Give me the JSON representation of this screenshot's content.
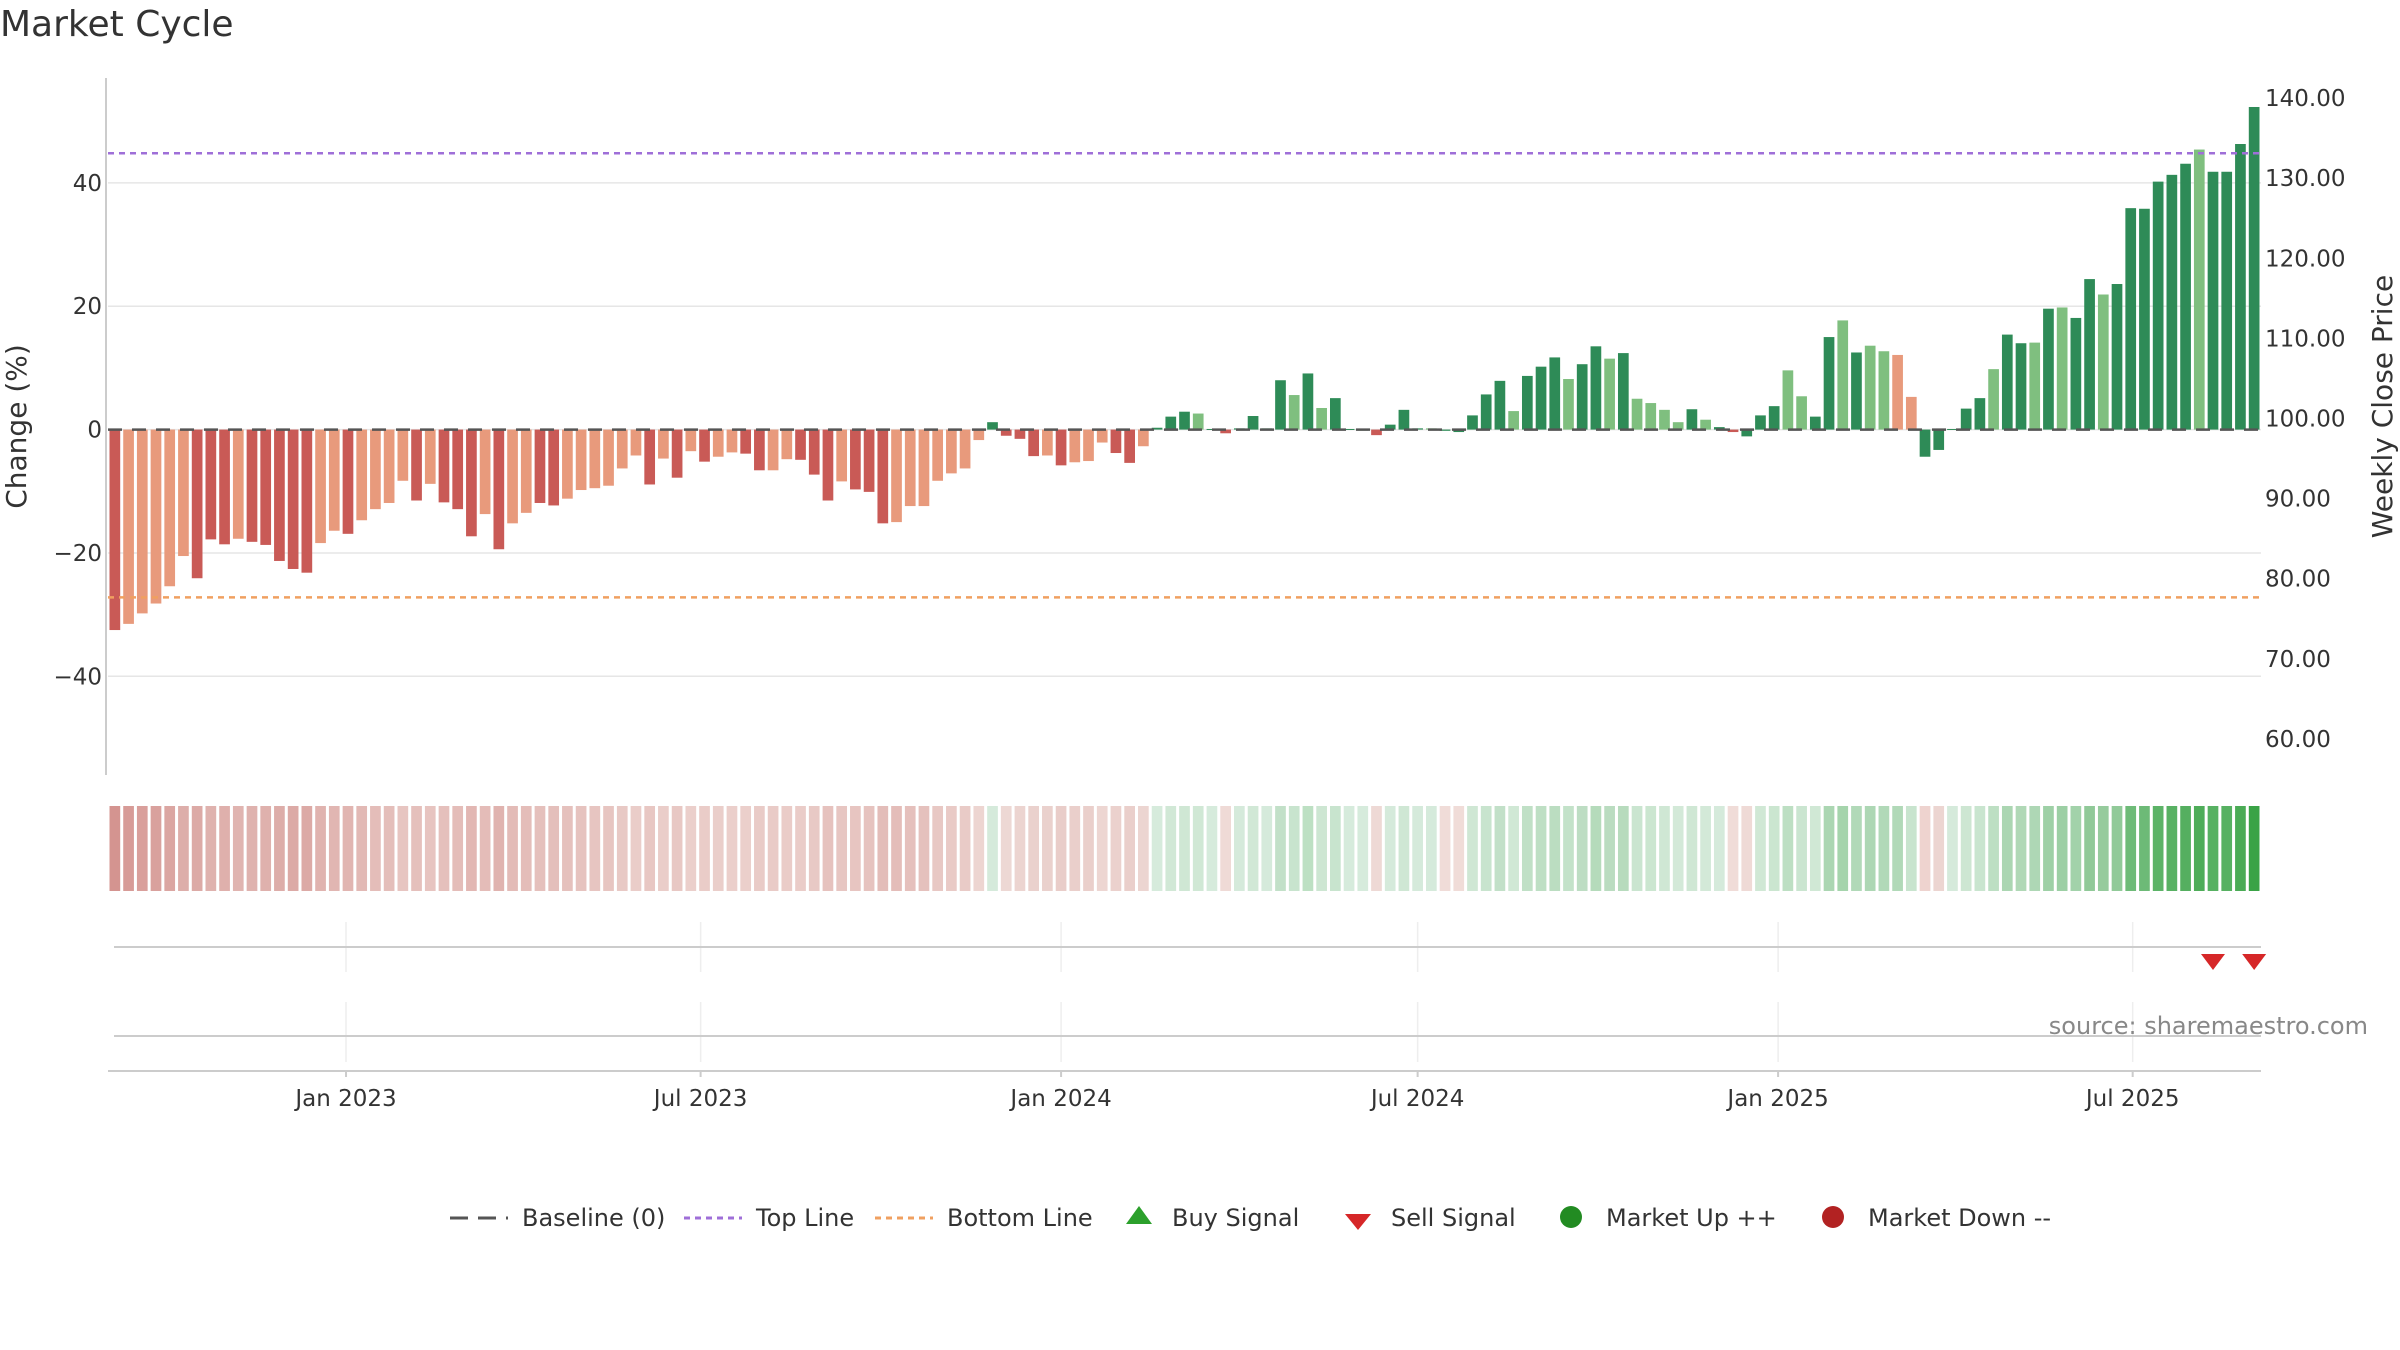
{
  "title": "Market Cycle",
  "source": "source: sharemaestro.com",
  "chart_data": {
    "type": "bar",
    "title": "Market Cycle",
    "ylabel": "Change (%)",
    "y2label": "Weekly Close Price",
    "ylim": [
      -56,
      57
    ],
    "y2lim": [
      55.5,
      142.5
    ],
    "yticks": [
      -40,
      -20,
      0,
      20,
      40
    ],
    "yticklabels": [
      "−40",
      "−20",
      "0",
      "20",
      "40"
    ],
    "y2ticks": [
      60,
      70,
      80,
      90,
      100,
      110,
      120,
      130,
      140
    ],
    "y2ticklabels": [
      "60.00",
      "70.00",
      "80.00",
      "90.00",
      "100.00",
      "110.00",
      "120.00",
      "130.00",
      "140.00"
    ],
    "xticklabels": [
      "Jan 2023",
      "Jul 2023",
      "Jan 2024",
      "Jul 2024",
      "Jan 2025",
      "Jul 2025"
    ],
    "x_start": "2022-09-05",
    "x_tick_dates": [
      "2023-01-01",
      "2023-07-01",
      "2024-01-01",
      "2024-07-01",
      "2025-01-01",
      "2025-07-01"
    ],
    "top_line": 44.8,
    "bottom_line": -27.2,
    "baseline": 0,
    "grid": true,
    "legend_position": "bottom",
    "colors": {
      "strong_down": "#c95a56",
      "weak_down": "#e89a7c",
      "strong_up": "#2e8b57",
      "weak_up": "#7fbf7f",
      "top_line": "#9f6fd8",
      "bottom_line": "#f0a060",
      "baseline": "#555555",
      "buy": "#2ca02c",
      "sell": "#d62728",
      "market_up": "#228b22",
      "market_down": "#b22222"
    },
    "series": [
      {
        "values": [
          -32.5,
          -31.5,
          -29.8,
          -28.2,
          -25.4,
          -20.5,
          -24.1,
          -17.8,
          -18.6,
          -17.7,
          -18.2,
          -18.7,
          -21.3,
          -22.6,
          -23.2,
          -18.4,
          -16.4,
          -16.9,
          -14.7,
          -12.9,
          -11.9,
          -8.3,
          -11.5,
          -8.8,
          -11.8,
          -12.9,
          -17.3,
          -13.7,
          -19.4,
          -15.2,
          -13.5,
          -11.9,
          -12.3,
          -11.2,
          -9.8,
          -9.5,
          -9.1,
          -6.3,
          -4.2,
          -8.9,
          -4.7,
          -7.8,
          -3.5,
          -5.2,
          -4.4,
          -3.7,
          -3.9,
          -6.6,
          -6.6,
          -4.8,
          -4.9,
          -7.3,
          -11.5,
          -8.4,
          -9.7,
          -10.1,
          -15.2,
          -15.0,
          -12.4,
          -12.4,
          -8.3,
          -7.1,
          -6.3,
          -1.7,
          1.2,
          -1.0,
          -1.5,
          -4.3,
          -4.2,
          -5.8,
          -5.3,
          -5.1,
          -2.1,
          -3.8,
          -5.4,
          -2.7,
          0.3,
          2.1,
          2.9,
          2.6,
          0.1,
          -0.6,
          0.2,
          2.2,
          0.2,
          8.0,
          5.6,
          9.1,
          3.5,
          5.1,
          0.1,
          0.0,
          -0.9,
          0.8,
          3.2,
          0.2,
          0.2,
          -0.2,
          -0.4,
          2.3,
          5.7,
          7.9,
          3.0,
          8.7,
          10.2,
          11.7,
          8.2,
          10.6,
          13.5,
          11.5,
          12.4,
          5.0,
          4.3,
          3.2,
          1.2,
          3.3,
          1.6,
          0.4,
          -0.4,
          -1.1,
          2.3,
          3.8,
          9.6,
          5.4,
          2.1,
          15.0,
          17.7,
          12.5,
          13.6,
          12.7,
          12.1,
          5.3,
          -4.4,
          -3.3,
          0.1,
          3.4,
          5.1,
          9.8,
          15.4,
          14.0,
          14.1,
          19.6,
          19.8,
          18.1,
          24.4,
          21.9,
          23.6,
          35.9,
          35.8,
          40.2,
          41.3,
          43.1,
          45.4,
          41.8,
          41.8,
          46.3,
          52.3
        ]
      }
    ],
    "strengths": [
      "sd",
      "wd",
      "wd",
      "wd",
      "wd",
      "wd",
      "sd",
      "sd",
      "sd",
      "wd",
      "sd",
      "sd",
      "sd",
      "sd",
      "sd",
      "wd",
      "wd",
      "sd",
      "wd",
      "wd",
      "wd",
      "wd",
      "sd",
      "wd",
      "sd",
      "sd",
      "sd",
      "wd",
      "sd",
      "wd",
      "wd",
      "sd",
      "sd",
      "wd",
      "wd",
      "wd",
      "wd",
      "wd",
      "wd",
      "sd",
      "wd",
      "sd",
      "wd",
      "sd",
      "wd",
      "wd",
      "sd",
      "sd",
      "wd",
      "wd",
      "sd",
      "sd",
      "sd",
      "wd",
      "sd",
      "sd",
      "sd",
      "wd",
      "wd",
      "wd",
      "wd",
      "wd",
      "wd",
      "wd",
      "su",
      "sd",
      "sd",
      "sd",
      "wd",
      "sd",
      "wd",
      "wd",
      "wd",
      "sd",
      "sd",
      "wd",
      "su",
      "su",
      "su",
      "wu",
      "su",
      "sd",
      "su",
      "su",
      "su",
      "su",
      "wu",
      "su",
      "wu",
      "su",
      "su",
      "su",
      "sd",
      "su",
      "su",
      "su",
      "wu",
      "su",
      "su",
      "su",
      "su",
      "su",
      "wu",
      "su",
      "su",
      "su",
      "wu",
      "su",
      "su",
      "wu",
      "su",
      "wu",
      "wu",
      "wu",
      "wu",
      "su",
      "wu",
      "su",
      "sd",
      "su",
      "su",
      "su",
      "wu",
      "wu",
      "su",
      "su",
      "wu",
      "su",
      "wu",
      "wu",
      "wd",
      "wd",
      "su",
      "su",
      "su",
      "su",
      "su",
      "wu",
      "su",
      "su",
      "wu",
      "su",
      "wu",
      "su",
      "su",
      "wu",
      "su",
      "su",
      "su",
      "su",
      "su",
      "su",
      "wu",
      "su",
      "su",
      "su",
      "su"
    ],
    "heatmap_colors": [
      "#d49490",
      "#d79b97",
      "#d99f9b",
      "#d9a19d",
      "#dba6a2",
      "#ddaeaa",
      "#dcaaa6",
      "#dfb2ae",
      "#dfb0ac",
      "#e0b4b0",
      "#dfb2ae",
      "#dfb1ad",
      "#ddada9",
      "#dcaaa6",
      "#dcaaa6",
      "#e0b3af",
      "#e1b6b2",
      "#e1b5b1",
      "#e2b9b5",
      "#e4bdb9",
      "#e4beba",
      "#e7c5c1",
      "#e5c0bc",
      "#e7c4c0",
      "#e5c0bc",
      "#e4bdb9",
      "#e2b7b3",
      "#e4bcb8",
      "#e0b3af",
      "#e3bbb7",
      "#e4bdb9",
      "#e5c0bc",
      "#e4bfbb",
      "#e5c1bd",
      "#e6c3bf",
      "#e7c5c1",
      "#e7c5c1",
      "#e8c9c5",
      "#eacdc9",
      "#e8c7c3",
      "#eacdc9",
      "#e8c8c4",
      "#ebcfcb",
      "#eaccc8",
      "#eaceca",
      "#ebcfcb",
      "#ebcfcb",
      "#e9cbc7",
      "#e9cbc7",
      "#eaccc8",
      "#eaccc8",
      "#e8c9c5",
      "#e6c2be",
      "#e7c6c2",
      "#e7c5c1",
      "#e6c3bf",
      "#e3bdb9",
      "#e4bdb9",
      "#e5c0bc",
      "#e5c1bd",
      "#e8c8c4",
      "#e9cac6",
      "#e9cbc7",
      "#edd5d1",
      "#d5eadb",
      "#edd8d4",
      "#ecd4d0",
      "#ead1cd",
      "#ead1cd",
      "#e9cdc9",
      "#eacfcb",
      "#eacfcb",
      "#edd6d2",
      "#ebd1cd",
      "#eacfcb",
      "#ecd5d1",
      "#d6ebdc",
      "#d1e8d6",
      "#cfe7d4",
      "#d0e8d5",
      "#d6ebdc",
      "#efdad6",
      "#d5eadb",
      "#d1e8d6",
      "#d5eadb",
      "#c2e0c8",
      "#c8e4ce",
      "#bde0c3",
      "#cde6d2",
      "#c8e4ce",
      "#d6ebdc",
      "#d6ebdc",
      "#eed9d5",
      "#d5eadb",
      "#cfe7d4",
      "#d5eadb",
      "#d5eadb",
      "#f0dcd8",
      "#f0dcd8",
      "#cfe7d4",
      "#c8e4ce",
      "#c2e0c8",
      "#d0e8d5",
      "#c0e0c6",
      "#bedfc4",
      "#bbddc1",
      "#c3e2c9",
      "#bdddc3",
      "#b5dbbb",
      "#badcc0",
      "#b7dbbd",
      "#cae5d0",
      "#cbe6d0",
      "#cfe7d4",
      "#d3e9d8",
      "#cfe7d4",
      "#d3e9d8",
      "#d5eadb",
      "#f0dcd8",
      "#efdad6",
      "#d0e8d5",
      "#cbe6d0",
      "#bddfc3",
      "#cae5d0",
      "#d0e8d5",
      "#abd6b2",
      "#a5d4ac",
      "#b1d9b8",
      "#add7b4",
      "#b1d9b8",
      "#b1d9b8",
      "#c8e4ce",
      "#eed3cf",
      "#ecd5d1",
      "#d5eadb",
      "#cde6d2",
      "#c9e5cf",
      "#bddfc3",
      "#abd6b2",
      "#b0d8b6",
      "#aed7b5",
      "#9ed0a6",
      "#9ccfa4",
      "#a2d2aa",
      "#90c998",
      "#96cb9d",
      "#91ca99",
      "#6ebb78",
      "#6dba77",
      "#5cb367",
      "#58b163",
      "#55af60",
      "#4ead59",
      "#57b162",
      "#57b162",
      "#4aab55",
      "#3aa346"
    ],
    "sell_signal_indices": [
      153,
      156
    ]
  },
  "legend": [
    {
      "label": "Baseline (0)",
      "icon": "dash-line-icon"
    },
    {
      "label": "Top Line",
      "icon": "dotted-line-icon"
    },
    {
      "label": "Bottom Line",
      "icon": "dotted-line-icon"
    },
    {
      "label": "Buy Signal",
      "icon": "triangle-up-icon"
    },
    {
      "label": "Sell Signal",
      "icon": "triangle-down-icon"
    },
    {
      "label": "Market Up ++",
      "icon": "circle-icon"
    },
    {
      "label": "Market Down --",
      "icon": "circle-icon"
    }
  ]
}
